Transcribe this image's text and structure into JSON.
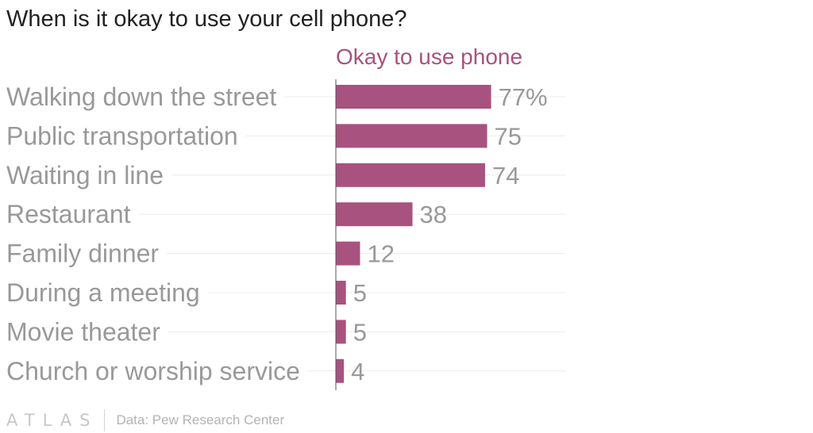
{
  "title": "When is it okay to use your cell phone?",
  "footer": {
    "logo": "ATLAS",
    "source": "Data: Pew Research Center"
  },
  "colors": {
    "bar": "#a8527f",
    "label": "#999999",
    "series_label": "#a8527f",
    "title": "#222222",
    "gridline": "#ececec",
    "axis": "#555555"
  },
  "chart_data": {
    "type": "bar",
    "orientation": "horizontal",
    "title": "When is it okay to use your cell phone?",
    "categories": [
      "Walking down the street",
      "Public transportation",
      "Waiting in line",
      "Restaurant",
      "Family dinner",
      "During a meeting",
      "Movie theater",
      "Church or worship service"
    ],
    "series": [
      {
        "name": "Okay to use phone",
        "values": [
          77,
          75,
          74,
          38,
          12,
          5,
          5,
          4
        ],
        "value_labels": [
          "77%",
          "75",
          "74",
          "38",
          "12",
          "5",
          "5",
          "4"
        ]
      }
    ],
    "xlim": [
      0,
      100
    ],
    "grid": false,
    "legend": "top"
  }
}
